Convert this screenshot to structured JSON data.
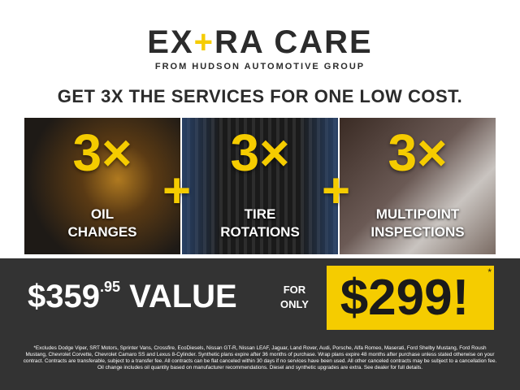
{
  "logo": {
    "part1": "EX",
    "plus": "+",
    "part2": "RA CARE",
    "subtitle": "FROM HUDSON AUTOMOTIVE GROUP"
  },
  "headline": "GET 3X THE SERVICES FOR ONE LOW COST.",
  "panels": [
    {
      "count": "3×",
      "label_line1": "OIL",
      "label_line2": "CHANGES",
      "image": "oil-pour-photo"
    },
    {
      "count": "3×",
      "label_line1": "TIRE",
      "label_line2": "ROTATIONS",
      "image": "tire-photo"
    },
    {
      "count": "3×",
      "label_line1": "MULTIPOINT",
      "label_line2": "INSPECTIONS",
      "image": "diagnostic-laptop-photo"
    }
  ],
  "plus_sign": "+",
  "pricing": {
    "value_dollars": "$359",
    "value_cents": ".95",
    "value_label": "VALUE",
    "for": "FOR",
    "only": "ONLY",
    "price": "$299!",
    "asterisk": "*"
  },
  "colors": {
    "accent": "#f5cc00",
    "dark": "#333333"
  },
  "fine_print": "*Excludes Dodge Viper, SRT Motors, Sprinter Vans, Crossfire, EcoDiesels, Nissan GT-R, Nissan LEAF, Jaguar, Land Rover, Audi, Porsche, Alfa Romeo, Maserati, Ford Shelby Mustang, Ford Roush Mustang, Chevrolet Corvette, Chevrolet Camaro SS and Lexus 8-Cylinder. Synthetic plans expire after 36 months of purchase. Wrap plans expire 48 months after purchase unless stated otherwise on your contract. Contracts are transferable, subject to a transfer fee. All contracts can be flat canceled within 30 days if no services have been used. All other canceled contracts may be subject to a cancellation fee. Oil change includes oil quantity based on manufacturer recommendations. Diesel and synthetic upgrades are extra. See dealer for full details."
}
